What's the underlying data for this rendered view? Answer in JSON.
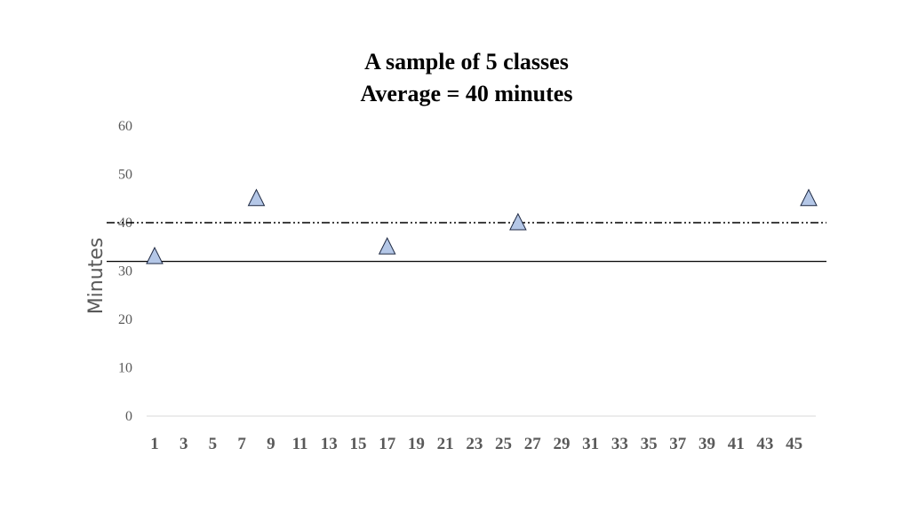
{
  "chart_data": {
    "type": "scatter",
    "title_lines": [
      "A sample of  5 classes",
      "Average = 40 minutes"
    ],
    "ylabel": "Minutes",
    "xlabel": "",
    "ylim": [
      0,
      60
    ],
    "yticks": [
      "0",
      "10",
      "20",
      "30",
      "40",
      "50",
      "60"
    ],
    "xlim": [
      1,
      46
    ],
    "xticks": [
      "1",
      "3",
      "5",
      "7",
      "9",
      "11",
      "13",
      "15",
      "17",
      "19",
      "21",
      "23",
      "25",
      "27",
      "29",
      "31",
      "33",
      "35",
      "37",
      "39",
      "41",
      "43",
      "45"
    ],
    "grid": false,
    "series": [
      {
        "x": [
          1,
          8,
          17,
          26,
          46
        ],
        "y": [
          33,
          45,
          35,
          40,
          45
        ],
        "marker": "triangle",
        "marker_fill": "#b4c7e7",
        "marker_edge": "#1f2a44"
      }
    ],
    "reference_lines": [
      {
        "y": 40,
        "style": "dash-dot",
        "color": "#000000"
      },
      {
        "y": 32,
        "style": "solid",
        "color": "#000000"
      }
    ]
  }
}
